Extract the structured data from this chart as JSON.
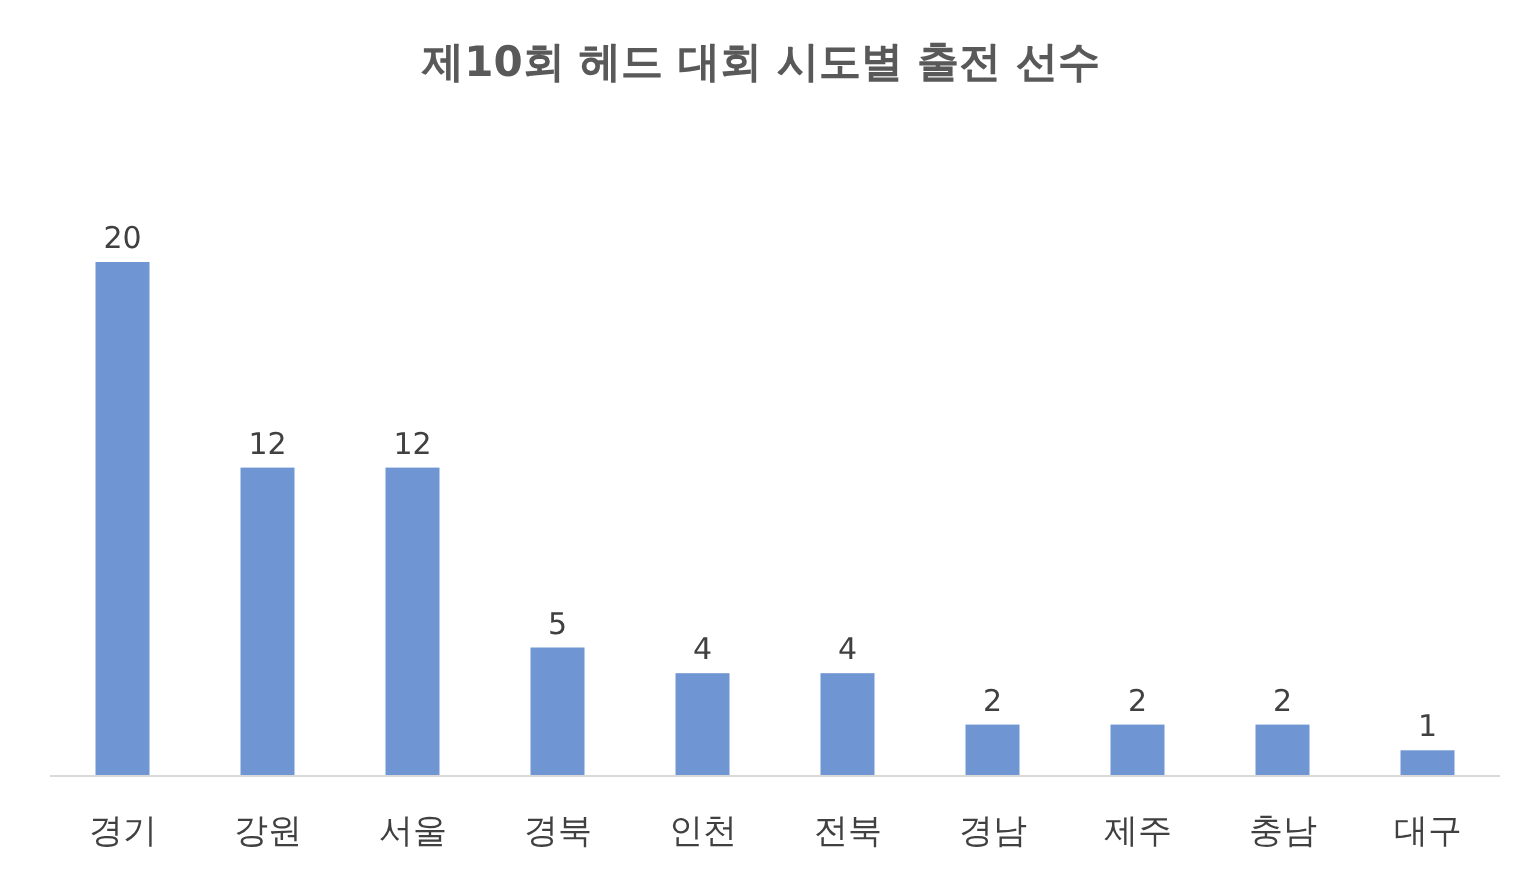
{
  "chart_data": {
    "type": "bar",
    "title": "제10회 헤드 대회 시도별 출전 선수",
    "categories": [
      "경기",
      "강원",
      "서울",
      "경북",
      "인천",
      "전북",
      "경남",
      "제주",
      "충남",
      "대구"
    ],
    "values": [
      20,
      12,
      12,
      5,
      4,
      4,
      2,
      2,
      2,
      1
    ],
    "color": "#6f95d3",
    "data_labels": true
  }
}
